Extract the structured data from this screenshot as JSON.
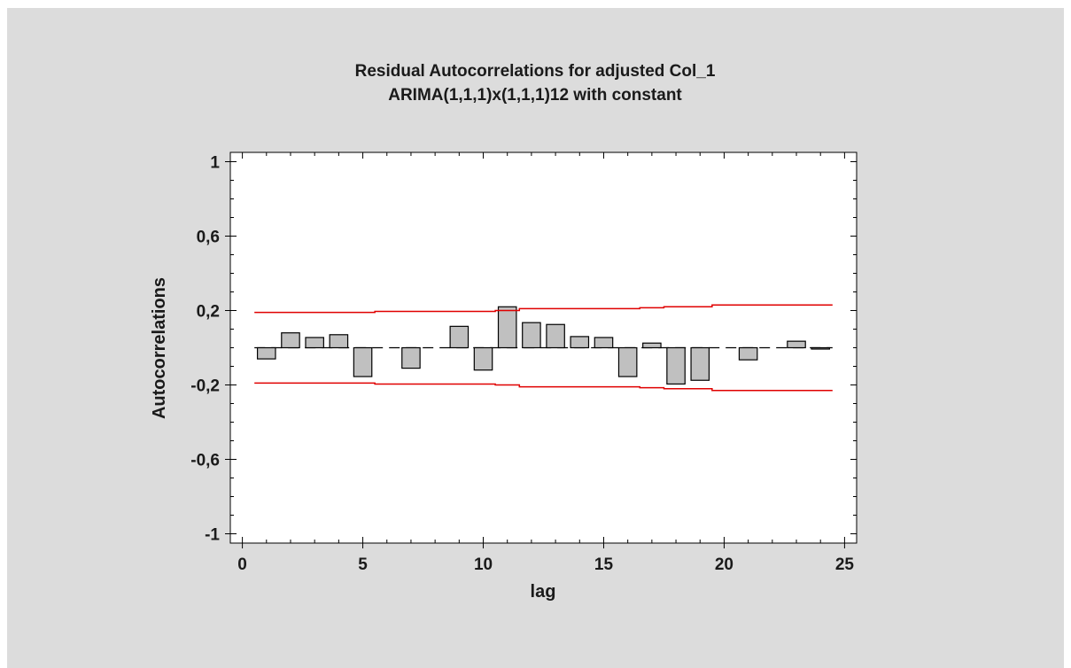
{
  "chart_data": {
    "type": "bar",
    "title": "Residual Autocorrelations for adjusted Col_1",
    "subtitle": "ARIMA(1,1,1)x(1,1,1)12 with constant",
    "xlabel": "lag",
    "ylabel": "Autocorrelations",
    "xlim": [
      -0.5,
      25.5
    ],
    "ylim": [
      -1.05,
      1.05
    ],
    "x_ticks": [
      0,
      5,
      10,
      15,
      20,
      25
    ],
    "y_ticks": [
      1,
      0.6,
      0.2,
      -0.2,
      -0.6,
      -1
    ],
    "x_tick_labels": [
      "0",
      "5",
      "10",
      "15",
      "20",
      "25"
    ],
    "y_tick_labels": [
      "1",
      "0,6",
      "0,2",
      "-0,2",
      "-0,6",
      "-1"
    ],
    "x": [
      1,
      2,
      3,
      4,
      5,
      6,
      7,
      8,
      9,
      10,
      11,
      12,
      13,
      14,
      15,
      16,
      17,
      18,
      19,
      20,
      21,
      22,
      23,
      24
    ],
    "values": [
      -0.06,
      0.08,
      0.055,
      0.07,
      -0.155,
      0.0,
      -0.11,
      0.0,
      0.115,
      -0.12,
      0.22,
      0.135,
      0.125,
      0.06,
      0.055,
      -0.155,
      0.025,
      -0.195,
      -0.175,
      0.0,
      -0.065,
      0.0,
      0.035,
      -0.005
    ],
    "limits": {
      "lags": [
        0.5,
        5.5,
        5.5,
        10.5,
        10.5,
        11.5,
        11.5,
        16.5,
        16.5,
        17.5,
        17.5,
        19.5,
        19.5,
        24.5
      ],
      "upper": [
        0.19,
        0.19,
        0.195,
        0.195,
        0.2,
        0.2,
        0.21,
        0.21,
        0.215,
        0.215,
        0.22,
        0.22,
        0.23,
        0.23
      ],
      "lower": [
        -0.19,
        -0.19,
        -0.195,
        -0.195,
        -0.2,
        -0.2,
        -0.21,
        -0.21,
        -0.215,
        -0.215,
        -0.22,
        -0.22,
        -0.23,
        -0.23
      ]
    },
    "grid": false,
    "colors": {
      "bar_fill": "#c0c0c0",
      "bar_stroke": "#000000",
      "limit_line": "#e00000",
      "background": "#dcdcdc",
      "plot_area": "#ffffff"
    }
  }
}
